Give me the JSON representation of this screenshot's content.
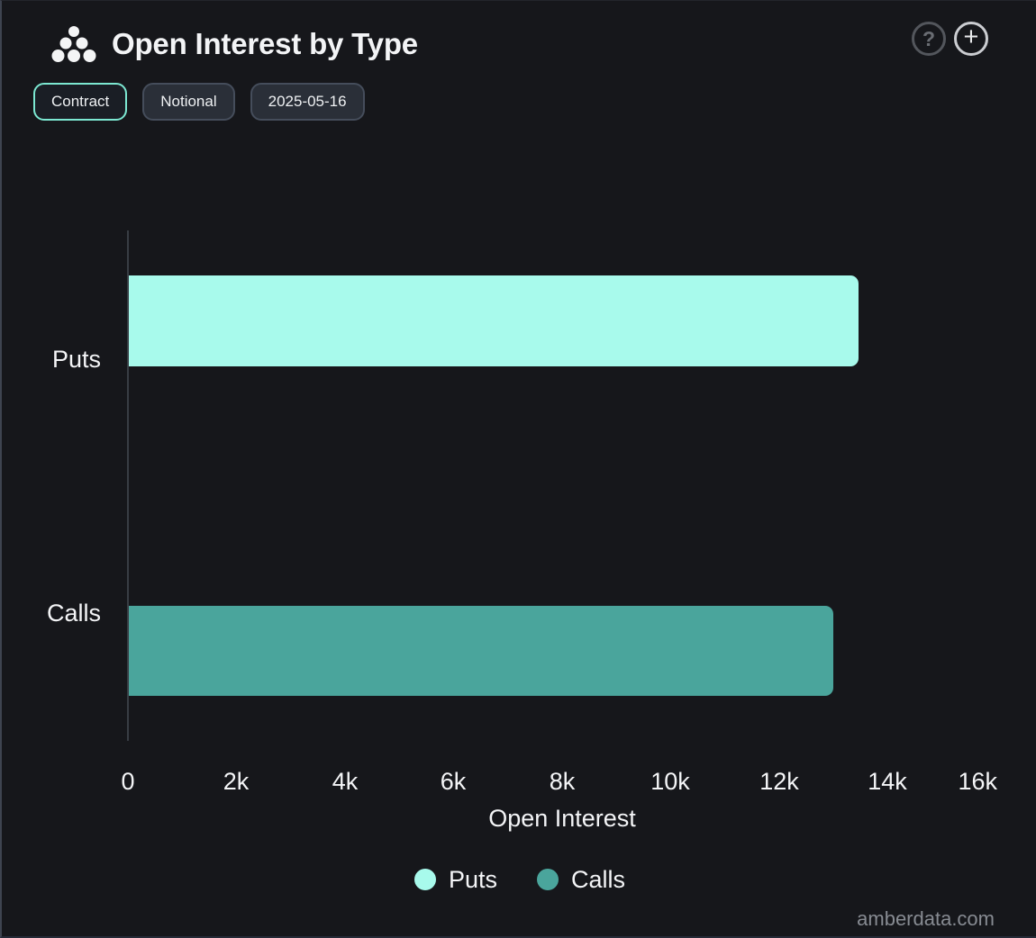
{
  "header": {
    "title": "Open Interest by Type",
    "help_label": "?",
    "add_label": "+"
  },
  "filters": {
    "contract": "Contract",
    "notional": "Notional",
    "date": "2025-05-16"
  },
  "chart_data": {
    "type": "bar",
    "orientation": "horizontal",
    "title": "Open Interest by Type",
    "categories": [
      "Puts",
      "Calls"
    ],
    "values": [
      13470,
      13010
    ],
    "colors": [
      "#A8FAEC",
      "#4AA59C"
    ],
    "xlabel": "Open Interest",
    "xlim": [
      0,
      16000
    ],
    "xticks": [
      "0",
      "2k",
      "4k",
      "6k",
      "8k",
      "10k",
      "12k",
      "14k",
      "16k"
    ],
    "grid": false,
    "legend_position": "bottom",
    "legend": [
      {
        "label": "Puts",
        "color": "#A8FAEC"
      },
      {
        "label": "Calls",
        "color": "#4AA59C"
      }
    ]
  },
  "footer": {
    "watermark": "amberdata.com"
  }
}
